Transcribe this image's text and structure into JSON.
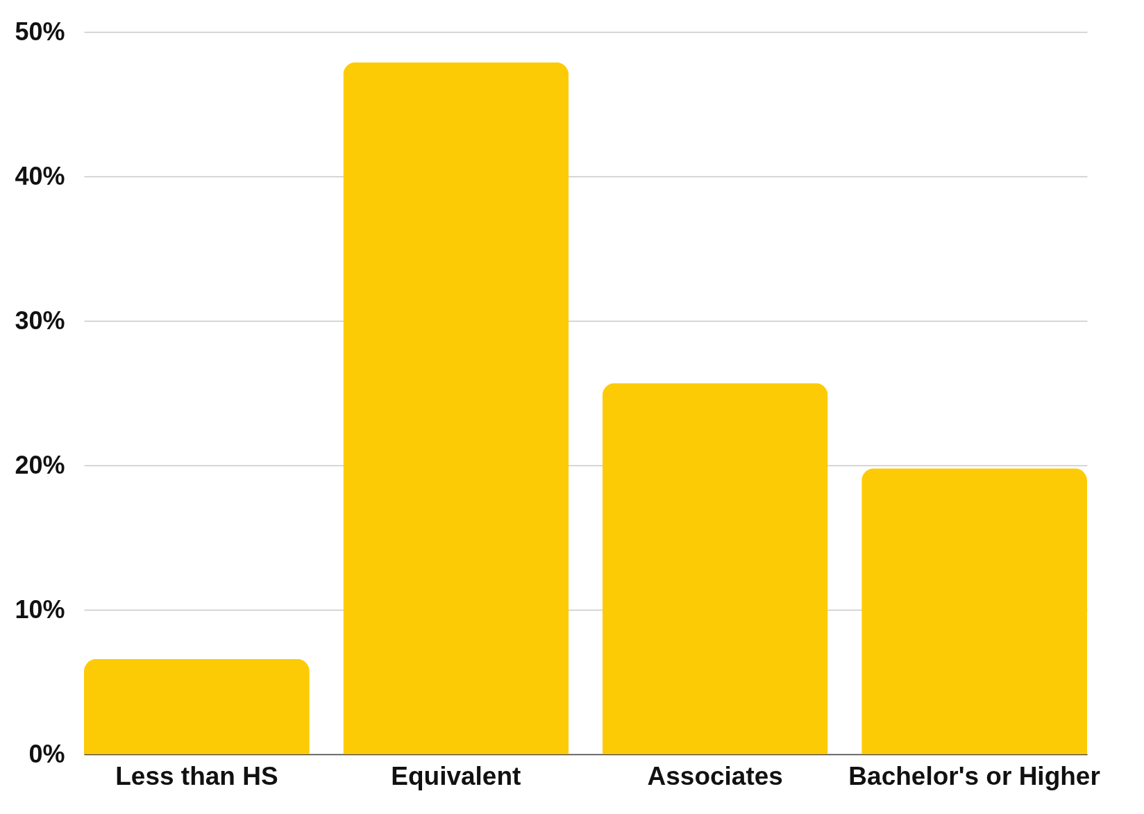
{
  "chart_data": {
    "type": "bar",
    "categories": [
      "Less than HS",
      "Equivalent",
      "Associates",
      "Bachelor's or Higher"
    ],
    "values": [
      6.6,
      47.9,
      25.7,
      19.8
    ],
    "color": "#fdcb05",
    "ylim": [
      0,
      50
    ],
    "yticks": [
      {
        "value": 0,
        "label": "0%"
      },
      {
        "value": 10,
        "label": "10%"
      },
      {
        "value": 20,
        "label": "20%"
      },
      {
        "value": 30,
        "label": "30%"
      },
      {
        "value": 40,
        "label": "40%"
      },
      {
        "value": 50,
        "label": "50%"
      }
    ],
    "grid": "y"
  }
}
